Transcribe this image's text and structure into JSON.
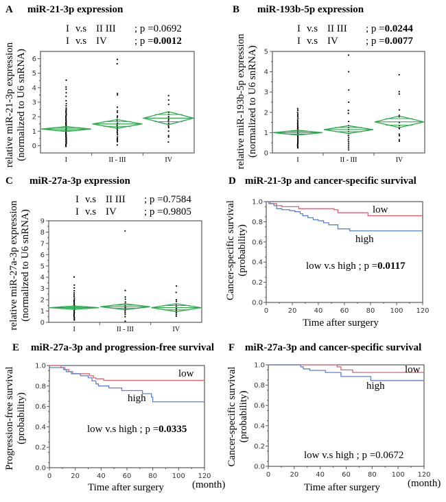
{
  "chart_data": [
    {
      "id": "A",
      "type": "scatter",
      "letter": "A",
      "title": "miR-21-3p expression",
      "stats": [
        {
          "comparison_a": "I",
          "vs": "v.s",
          "comparison_b": "II III",
          "p_label": "; p =",
          "p": "0.0692",
          "bold": false
        },
        {
          "comparison_a": "I",
          "vs": "v.s",
          "comparison_b": "IV",
          "p_label": "; p =",
          "p": "0.0012",
          "bold": true
        }
      ],
      "ylabel": [
        "relative miR-21-3p expression",
        "(normalized to U6 snRNA)"
      ],
      "categories": [
        "I",
        "II - III",
        "IV"
      ],
      "ylim": [
        -0.5,
        6.5
      ],
      "yticks": [
        0,
        1,
        2,
        3,
        4,
        5,
        6
      ],
      "diamonds": [
        {
          "mean": 1.15,
          "lower": 0.98,
          "upper": 1.32
        },
        {
          "mean": 1.5,
          "lower": 1.2,
          "upper": 1.8
        },
        {
          "mean": 1.9,
          "lower": 1.45,
          "upper": 2.35
        }
      ],
      "points": [
        [
          4.52,
          4.05,
          3.9,
          3.65,
          3.4,
          3.1,
          2.9,
          2.75,
          2.6,
          2.5,
          2.42,
          2.35,
          2.28,
          2.2,
          2.12,
          2.05,
          1.98,
          1.9,
          1.82,
          1.75,
          1.68,
          1.6,
          1.55,
          1.5,
          1.45,
          1.4,
          1.35,
          1.3,
          1.25,
          1.2,
          1.15,
          1.1,
          1.05,
          1.0,
          0.95,
          0.9,
          0.85,
          0.8,
          0.75,
          0.7,
          0.65,
          0.6,
          0.55,
          0.5,
          0.45,
          0.4,
          0.35,
          0.3,
          0.25,
          0.2,
          0.15,
          0.1,
          0.05,
          0.0,
          -0.05
        ],
        [
          5.95,
          5.65,
          3.6,
          3.5,
          2.65,
          2.4,
          2.3,
          2.05,
          1.95,
          1.8,
          1.7,
          1.55,
          1.45,
          1.35,
          1.25,
          1.15,
          1.05,
          0.95,
          0.85,
          0.75,
          0.6,
          0.5,
          0.42,
          0.35,
          0.28,
          0.05
        ],
        [
          3.45,
          3.15,
          2.85,
          2.3,
          2.15,
          2.0,
          1.9,
          1.8,
          1.7,
          1.55,
          1.45,
          1.35,
          1.25,
          1.0,
          0.7,
          0.6,
          0.25
        ]
      ]
    },
    {
      "id": "B",
      "type": "scatter",
      "letter": "B",
      "title": "miR-193b-5p expression",
      "stats": [
        {
          "comparison_a": "I",
          "vs": "v.s",
          "comparison_b": "II III",
          "p_label": "; p =",
          "p": "0.0244",
          "bold": true
        },
        {
          "comparison_a": "I",
          "vs": "v.s",
          "comparison_b": "IV",
          "p_label": "; p =",
          "p": "0.0077",
          "bold": true
        }
      ],
      "ylabel": [
        "relative miR-193b-5p expression",
        "(normalized to U6 snRNA)"
      ],
      "categories": [
        "I",
        "II - III",
        "IV"
      ],
      "ylim": [
        0,
        5
      ],
      "yticks": [
        0,
        1,
        2,
        3,
        4,
        5
      ],
      "diamonds": [
        {
          "mean": 1.0,
          "lower": 0.88,
          "upper": 1.12
        },
        {
          "mean": 1.15,
          "lower": 0.96,
          "upper": 1.34
        },
        {
          "mean": 1.53,
          "lower": 1.25,
          "upper": 1.82
        }
      ],
      "points": [
        [
          2.18,
          2.1,
          2.0,
          1.92,
          1.85,
          1.78,
          1.7,
          1.62,
          1.55,
          1.48,
          1.42,
          1.36,
          1.3,
          1.25,
          1.2,
          1.15,
          1.1,
          1.05,
          1.0,
          0.95,
          0.9,
          0.85,
          0.8,
          0.75,
          0.7,
          0.65,
          0.6,
          0.55,
          0.5,
          0.45,
          0.4,
          0.35,
          0.3,
          0.25
        ],
        [
          4.82,
          4.0,
          3.1,
          2.5,
          2.1,
          1.95,
          1.55,
          1.35,
          1.25,
          1.15,
          1.05,
          0.95,
          0.85,
          0.75,
          0.65,
          0.55,
          0.45,
          0.35,
          0.25,
          0.15
        ],
        [
          3.85,
          3.02,
          2.9,
          2.12,
          1.85,
          1.78,
          1.5,
          1.35,
          1.25,
          1.2,
          0.92,
          0.85,
          0.65,
          0.58
        ]
      ]
    },
    {
      "id": "C",
      "type": "scatter",
      "letter": "C",
      "title": "miR-27a-3p expression",
      "stats": [
        {
          "comparison_a": "I",
          "vs": "v.s",
          "comparison_b": "II III",
          "p_label": "; p =",
          "p": "0.7584",
          "bold": false
        },
        {
          "comparison_a": "I",
          "vs": "v.s",
          "comparison_b": "IV",
          "p_label": "; p =",
          "p": "0.9805",
          "bold": false
        }
      ],
      "ylabel": [
        "relative miR-27a-3p expression",
        "(normalized to U6 snRNA)"
      ],
      "categories": [
        "I",
        "II - III",
        "IV"
      ],
      "ylim": [
        0,
        9
      ],
      "yticks": [
        0,
        1,
        2,
        3,
        4,
        5,
        6,
        7,
        8,
        9
      ],
      "diamonds": [
        {
          "mean": 1.3,
          "lower": 1.15,
          "upper": 1.45
        },
        {
          "mean": 1.38,
          "lower": 1.12,
          "upper": 1.64
        },
        {
          "mean": 1.3,
          "lower": 0.95,
          "upper": 1.65
        }
      ],
      "points": [
        [
          4.02,
          3.3,
          3.05,
          2.8,
          2.6,
          2.45,
          2.3,
          2.15,
          2.0,
          1.9,
          1.8,
          1.7,
          1.6,
          1.5,
          1.4,
          1.3,
          1.2,
          1.1,
          1.0,
          0.9,
          0.8,
          0.7,
          0.6,
          0.5,
          0.4,
          0.3,
          0.2
        ],
        [
          8.1,
          2.82,
          2.25,
          2.05,
          1.8,
          1.65,
          1.5,
          1.4,
          1.3,
          1.2,
          1.1,
          1.0,
          0.85,
          0.7,
          0.5,
          0.1
        ],
        [
          3.22,
          2.65,
          2.0,
          1.85,
          1.6,
          1.45,
          1.3,
          1.2,
          1.1,
          1.0,
          0.85,
          0.7,
          0.55
        ]
      ]
    },
    {
      "id": "D",
      "type": "line",
      "letter": "D",
      "title": "miR-21-3p and cancer-specific survival",
      "ylabel": [
        "Cancer-specific survival",
        "(probability)"
      ],
      "xlabel": "Time after surgery",
      "xunit": "",
      "xlim": [
        0,
        120
      ],
      "ylim": [
        0,
        1
      ],
      "xticks": [
        0,
        20,
        40,
        60,
        80,
        100,
        120
      ],
      "yticks": [
        "0.0",
        "0.2",
        "0.4",
        "0.6",
        "0.8",
        "1.0"
      ],
      "pvalue_prefix": "low v.s high ; p =",
      "pvalue": "0.0117",
      "pvalue_bold": true,
      "series": [
        {
          "name": "low",
          "color": "#e06070",
          "steps": [
            [
              0,
              1.0
            ],
            [
              2,
              0.98
            ],
            [
              8,
              0.96
            ],
            [
              12,
              0.95
            ],
            [
              25,
              0.93
            ],
            [
              52,
              0.92
            ],
            [
              55,
              0.89
            ],
            [
              78,
              0.86
            ],
            [
              120,
              0.86
            ]
          ]
        },
        {
          "name": "high",
          "color": "#5b7fd0",
          "steps": [
            [
              0,
              1.0
            ],
            [
              3,
              0.98
            ],
            [
              6,
              0.96
            ],
            [
              8,
              0.93
            ],
            [
              12,
              0.92
            ],
            [
              18,
              0.91
            ],
            [
              22,
              0.9
            ],
            [
              26,
              0.88
            ],
            [
              28,
              0.86
            ],
            [
              32,
              0.84
            ],
            [
              36,
              0.82
            ],
            [
              40,
              0.81
            ],
            [
              44,
              0.79
            ],
            [
              48,
              0.77
            ],
            [
              55,
              0.73
            ],
            [
              64,
              0.71
            ],
            [
              120,
              0.71
            ]
          ]
        }
      ],
      "labels": {
        "low": "low",
        "high": "high"
      }
    },
    {
      "id": "E",
      "type": "line",
      "letter": "E",
      "title": "miR-27a-3p and progression-free survival",
      "ylabel": [
        "Progression-free survival",
        "(probability)"
      ],
      "xlabel": "Time after surgery",
      "xunit": "(month)",
      "xlim": [
        0,
        120
      ],
      "ylim": [
        0,
        1
      ],
      "xticks": [
        0,
        20,
        40,
        60,
        80,
        100,
        120
      ],
      "yticks": [
        "0.0",
        "0.2",
        "0.4",
        "0.6",
        "0.8",
        "1.0"
      ],
      "pvalue_prefix": "low v.s high ; p =",
      "pvalue": "0.0335",
      "pvalue_bold": true,
      "series": [
        {
          "name": "low",
          "color": "#e06070",
          "steps": [
            [
              0,
              1.0
            ],
            [
              9,
              0.98
            ],
            [
              12,
              0.96
            ],
            [
              15,
              0.94
            ],
            [
              18,
              0.92
            ],
            [
              31,
              0.9
            ],
            [
              34,
              0.88
            ],
            [
              36,
              0.87
            ],
            [
              42,
              0.855
            ],
            [
              120,
              0.855
            ]
          ]
        },
        {
          "name": "high",
          "color": "#5b7fd0",
          "steps": [
            [
              0,
              0.98
            ],
            [
              11,
              0.96
            ],
            [
              13,
              0.94
            ],
            [
              17,
              0.92
            ],
            [
              24,
              0.9
            ],
            [
              30,
              0.88
            ],
            [
              33,
              0.85
            ],
            [
              36,
              0.82
            ],
            [
              38,
              0.8
            ],
            [
              46,
              0.78
            ],
            [
              56,
              0.755
            ],
            [
              72,
              0.725
            ],
            [
              79,
              0.69
            ],
            [
              80,
              0.645
            ],
            [
              120,
              0.645
            ]
          ]
        }
      ],
      "labels": {
        "low": "low",
        "high": "high"
      }
    },
    {
      "id": "F",
      "type": "line",
      "letter": "F",
      "title": "miR-27a-3p and cancer-specific survival",
      "ylabel": [
        "Cancer-specific survival",
        "(probability)"
      ],
      "xlabel": "Time after surgery",
      "xunit": "(month)",
      "xlim": [
        0,
        120
      ],
      "ylim": [
        0,
        1
      ],
      "xticks": [
        0,
        20,
        40,
        60,
        80,
        100,
        120
      ],
      "yticks": [
        "0.0",
        "0.2",
        "0.4",
        "0.6",
        "0.8",
        "1.0"
      ],
      "pvalue_prefix": "low v.s high ; p =",
      "pvalue": "0.0672",
      "pvalue_bold": false,
      "series": [
        {
          "name": "low",
          "color": "#e06070",
          "steps": [
            [
              0,
              1.0
            ],
            [
              53,
              0.98
            ],
            [
              56,
              0.95
            ],
            [
              65,
              0.925
            ],
            [
              120,
              0.925
            ]
          ]
        },
        {
          "name": "high",
          "color": "#5b7fd0",
          "steps": [
            [
              0,
              1.0
            ],
            [
              25,
              0.98
            ],
            [
              27,
              0.96
            ],
            [
              32,
              0.945
            ],
            [
              44,
              0.925
            ],
            [
              56,
              0.885
            ],
            [
              79,
              0.845
            ],
            [
              120,
              0.845
            ]
          ]
        }
      ],
      "labels": {
        "low": "low",
        "high": "high"
      }
    }
  ],
  "colors": {
    "diamond": "#2aa84a",
    "point": "#000000",
    "frame": "#555555",
    "low": "#e06070",
    "high": "#5b7fd0"
  }
}
